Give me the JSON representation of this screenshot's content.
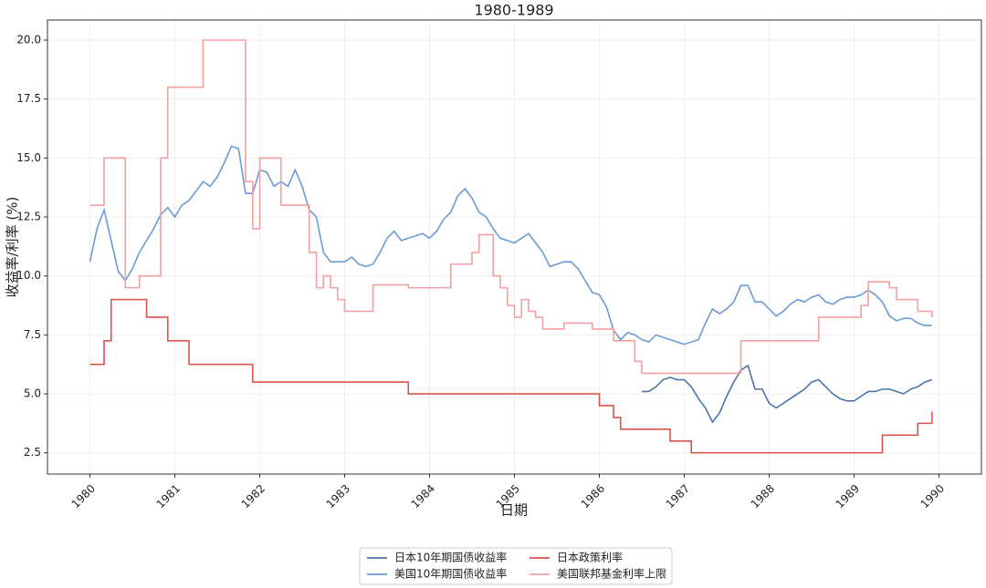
{
  "chart_data": {
    "type": "line",
    "title": "1980-1989",
    "x_label": "日期",
    "y_label": "收益率/利率 (%)",
    "x": [
      1980,
      1980.083,
      1980.167,
      1980.25,
      1980.333,
      1980.417,
      1980.5,
      1980.583,
      1980.667,
      1980.75,
      1980.833,
      1980.917,
      1981,
      1981.083,
      1981.167,
      1981.25,
      1981.333,
      1981.417,
      1981.5,
      1981.583,
      1981.667,
      1981.75,
      1981.833,
      1981.917,
      1982,
      1982.083,
      1982.167,
      1982.25,
      1982.333,
      1982.417,
      1982.5,
      1982.583,
      1982.667,
      1982.75,
      1982.833,
      1982.917,
      1983,
      1983.083,
      1983.167,
      1983.25,
      1983.333,
      1983.417,
      1983.5,
      1983.583,
      1983.667,
      1983.75,
      1983.833,
      1983.917,
      1984,
      1984.083,
      1984.167,
      1984.25,
      1984.333,
      1984.417,
      1984.5,
      1984.583,
      1984.667,
      1984.75,
      1984.833,
      1984.917,
      1985,
      1985.083,
      1985.167,
      1985.25,
      1985.333,
      1985.417,
      1985.5,
      1985.583,
      1985.667,
      1985.75,
      1985.833,
      1985.917,
      1986,
      1986.083,
      1986.167,
      1986.25,
      1986.333,
      1986.417,
      1986.5,
      1986.583,
      1986.667,
      1986.75,
      1986.833,
      1986.917,
      1987,
      1987.083,
      1987.167,
      1987.25,
      1987.333,
      1987.417,
      1987.5,
      1987.583,
      1987.667,
      1987.75,
      1987.833,
      1987.917,
      1988,
      1988.083,
      1988.167,
      1988.25,
      1988.333,
      1988.417,
      1988.5,
      1988.583,
      1988.667,
      1988.75,
      1988.833,
      1988.917,
      1989,
      1989.083,
      1989.167,
      1989.25,
      1989.333,
      1989.417,
      1989.5,
      1989.583,
      1989.667,
      1989.75,
      1989.833,
      1989.917
    ],
    "series": [
      {
        "name": "日本10年期国债收益率",
        "color": "#4a76a8",
        "step": false,
        "values": [
          null,
          null,
          null,
          null,
          null,
          null,
          null,
          null,
          null,
          null,
          null,
          null,
          null,
          null,
          null,
          null,
          null,
          null,
          null,
          null,
          null,
          null,
          null,
          null,
          null,
          null,
          null,
          null,
          null,
          null,
          null,
          null,
          null,
          null,
          null,
          null,
          null,
          null,
          null,
          null,
          null,
          null,
          null,
          null,
          null,
          null,
          null,
          null,
          null,
          null,
          null,
          null,
          null,
          null,
          null,
          null,
          null,
          null,
          null,
          null,
          null,
          null,
          null,
          null,
          null,
          null,
          null,
          null,
          null,
          null,
          null,
          null,
          null,
          null,
          null,
          null,
          null,
          null,
          5.1,
          5.1,
          5.3,
          5.6,
          5.7,
          5.6,
          5.6,
          5.3,
          4.8,
          4.4,
          3.8,
          4.2,
          4.9,
          5.5,
          6.0,
          6.2,
          5.2,
          5.2,
          4.6,
          4.4,
          4.6,
          4.8,
          5.0,
          5.2,
          5.5,
          5.6,
          5.3,
          5.0,
          4.8,
          4.7,
          4.7,
          4.9,
          5.1,
          5.1,
          5.2,
          5.2,
          5.1,
          5.0,
          5.2,
          5.3,
          5.5,
          5.6
        ]
      },
      {
        "name": "美国10年期国债收益率",
        "color": "#6a9bd8",
        "step": false,
        "values": [
          10.6,
          12.0,
          12.8,
          11.5,
          10.2,
          9.8,
          10.3,
          11.0,
          11.5,
          12.0,
          12.6,
          12.9,
          12.5,
          13.0,
          13.2,
          13.6,
          14.0,
          13.8,
          14.2,
          14.8,
          15.5,
          15.4,
          13.5,
          13.5,
          14.5,
          14.4,
          13.8,
          14.0,
          13.8,
          14.5,
          13.8,
          12.8,
          12.5,
          11.0,
          10.6,
          10.6,
          10.6,
          10.8,
          10.5,
          10.4,
          10.5,
          11.0,
          11.6,
          11.9,
          11.5,
          11.6,
          11.7,
          11.8,
          11.6,
          11.9,
          12.4,
          12.7,
          13.4,
          13.7,
          13.3,
          12.7,
          12.5,
          12.0,
          11.6,
          11.5,
          11.4,
          11.6,
          11.8,
          11.4,
          11.0,
          10.4,
          10.5,
          10.6,
          10.6,
          10.3,
          9.8,
          9.3,
          9.2,
          8.7,
          7.7,
          7.3,
          7.6,
          7.5,
          7.3,
          7.2,
          7.5,
          7.4,
          7.3,
          7.2,
          7.1,
          7.2,
          7.3,
          8.0,
          8.6,
          8.4,
          8.6,
          8.9,
          9.6,
          9.6,
          8.9,
          8.9,
          8.6,
          8.3,
          8.5,
          8.8,
          9.0,
          8.9,
          9.1,
          9.2,
          8.9,
          8.8,
          9.0,
          9.1,
          9.1,
          9.2,
          9.4,
          9.2,
          8.9,
          8.3,
          8.1,
          8.2,
          8.2,
          8.0,
          7.9,
          7.9
        ]
      },
      {
        "name": "日本政策利率",
        "color": "#d9534f",
        "step": true,
        "values": [
          6.25,
          6.25,
          7.25,
          9,
          9,
          9,
          9,
          9,
          8.25,
          8.25,
          8.25,
          7.25,
          7.25,
          7.25,
          6.25,
          6.25,
          6.25,
          6.25,
          6.25,
          6.25,
          6.25,
          6.25,
          6.25,
          5.5,
          5.5,
          5.5,
          5.5,
          5.5,
          5.5,
          5.5,
          5.5,
          5.5,
          5.5,
          5.5,
          5.5,
          5.5,
          5.5,
          5.5,
          5.5,
          5.5,
          5.5,
          5.5,
          5.5,
          5.5,
          5.5,
          5,
          5,
          5,
          5,
          5,
          5,
          5,
          5,
          5,
          5,
          5,
          5,
          5,
          5,
          5,
          5,
          5,
          5,
          5,
          5,
          5,
          5,
          5,
          5,
          5,
          5,
          5,
          4.5,
          4.5,
          4,
          3.5,
          3.5,
          3.5,
          3.5,
          3.5,
          3.5,
          3.5,
          3,
          3,
          3,
          2.5,
          2.5,
          2.5,
          2.5,
          2.5,
          2.5,
          2.5,
          2.5,
          2.5,
          2.5,
          2.5,
          2.5,
          2.5,
          2.5,
          2.5,
          2.5,
          2.5,
          2.5,
          2.5,
          2.5,
          2.5,
          2.5,
          2.5,
          2.5,
          2.5,
          2.5,
          2.5,
          3.25,
          3.25,
          3.25,
          3.25,
          3.25,
          3.75,
          3.75,
          4.25
        ]
      },
      {
        "name": "美国联邦基金利率上限",
        "color": "#f4a0a0",
        "step": true,
        "values": [
          13,
          13,
          15,
          15,
          15,
          9.5,
          9.5,
          10,
          10,
          10,
          15,
          18,
          18,
          18,
          18,
          18,
          20,
          20,
          20,
          20,
          20,
          20,
          14,
          12,
          15,
          15,
          15,
          13,
          13,
          13,
          13,
          11,
          9.5,
          10,
          9.5,
          9,
          8.5,
          8.5,
          8.5,
          8.5,
          9.625,
          9.625,
          9.625,
          9.625,
          9.625,
          9.5,
          9.5,
          9.5,
          9.5,
          9.5,
          9.5,
          10.5,
          10.5,
          10.5,
          11,
          11.75,
          11.75,
          10,
          9.5,
          8.75,
          8.25,
          9,
          8.5,
          8.25,
          7.75,
          7.75,
          7.75,
          8,
          8,
          8,
          8,
          7.75,
          7.75,
          7.75,
          7.25,
          7.25,
          7.25,
          6.375,
          5.875,
          5.875,
          5.875,
          5.875,
          5.875,
          5.875,
          5.875,
          5.875,
          5.875,
          5.875,
          5.875,
          5.875,
          5.875,
          5.875,
          7.25,
          7.25,
          7.25,
          7.25,
          7.25,
          7.25,
          7.25,
          7.25,
          7.25,
          7.25,
          7.25,
          8.25,
          8.25,
          8.25,
          8.25,
          8.25,
          8.25,
          8.75,
          9.75,
          9.75,
          9.75,
          9.5,
          9,
          9,
          9,
          8.5,
          8.5,
          8.25
        ]
      }
    ],
    "xlim": [
      1979.5,
      1990.5
    ],
    "xticks": [
      1980,
      1981,
      1982,
      1983,
      1984,
      1985,
      1986,
      1987,
      1988,
      1989,
      1990
    ],
    "ylim": [
      1.6,
      20.85
    ],
    "yticks": [
      2.5,
      {
        "value": 5,
        "label": "5.0"
      },
      7.5,
      {
        "value": 10,
        "label": "10.0"
      },
      12.5,
      {
        "value": 15,
        "label": "15.0"
      },
      17.5,
      {
        "value": 20,
        "label": "20.0"
      }
    ],
    "grid": true,
    "legend": "bottom"
  }
}
